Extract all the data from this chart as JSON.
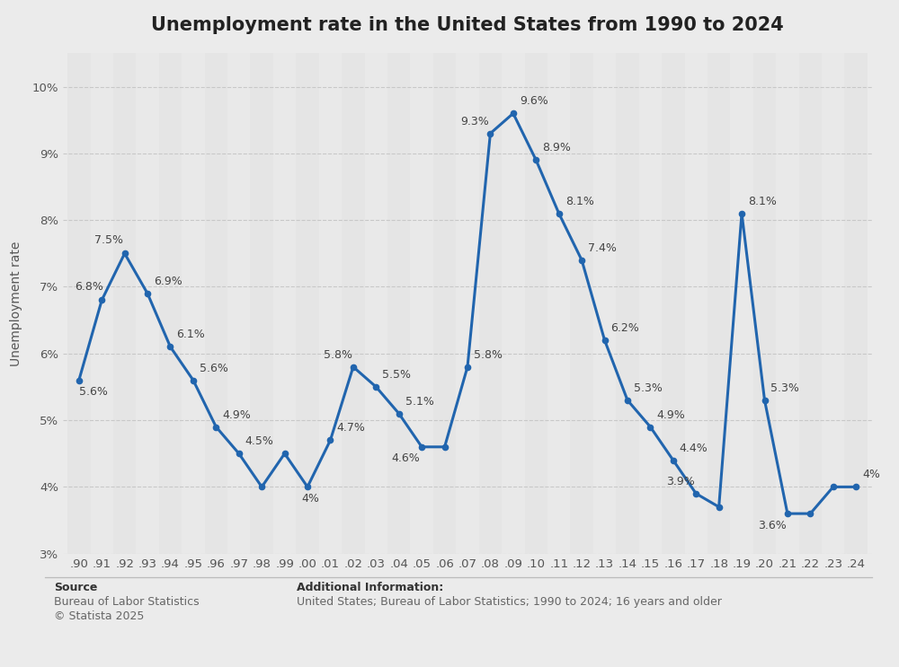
{
  "title": "Unemployment rate in the United States from 1990 to 2024",
  "ylabel": "Unemployment rate",
  "x_labels": [
    ".90",
    ".91",
    ".92",
    ".93",
    ".94",
    ".95",
    ".96",
    ".97",
    ".98",
    ".99",
    ".00",
    ".01",
    ".02",
    ".03",
    ".04",
    ".05",
    ".06",
    ".07",
    ".08",
    ".09",
    ".10",
    ".11",
    ".12",
    ".13",
    ".14",
    ".15",
    ".16",
    ".17",
    ".18",
    ".19",
    ".20",
    ".21",
    ".22",
    ".23",
    ".24"
  ],
  "values": [
    5.6,
    6.8,
    7.5,
    6.9,
    6.1,
    5.6,
    4.9,
    4.5,
    4.0,
    4.5,
    4.0,
    4.7,
    5.8,
    5.5,
    5.1,
    4.6,
    4.6,
    5.8,
    9.3,
    9.6,
    8.9,
    8.1,
    7.4,
    6.2,
    5.3,
    4.9,
    4.4,
    3.9,
    3.7,
    8.1,
    5.3,
    3.6,
    3.6,
    4.0,
    4.0
  ],
  "point_labels": {
    "0": [
      "5.6%",
      "left",
      0,
      -14
    ],
    "1": [
      "6.8%",
      "left",
      -22,
      6
    ],
    "2": [
      "7.5%",
      "left",
      -24,
      6
    ],
    "3": [
      "6.9%",
      "left",
      5,
      5
    ],
    "4": [
      "6.1%",
      "left",
      5,
      5
    ],
    "5": [
      "5.6%",
      "left",
      5,
      5
    ],
    "6": [
      "4.9%",
      "left",
      5,
      5
    ],
    "7": [
      "4.5%",
      "left",
      5,
      5
    ],
    "10": [
      "4%",
      "left",
      -5,
      -14
    ],
    "11": [
      "4.7%",
      "left",
      5,
      5
    ],
    "12": [
      "5.8%",
      "left",
      -24,
      5
    ],
    "13": [
      "5.5%",
      "left",
      5,
      5
    ],
    "14": [
      "5.1%",
      "left",
      5,
      5
    ],
    "15": [
      "4.6%",
      "left",
      -24,
      -14
    ],
    "17": [
      "5.8%",
      "left",
      5,
      5
    ],
    "18": [
      "9.3%",
      "left",
      -24,
      5
    ],
    "19": [
      "9.6%",
      "left",
      5,
      5
    ],
    "20": [
      "8.9%",
      "left",
      5,
      5
    ],
    "21": [
      "8.1%",
      "left",
      5,
      5
    ],
    "22": [
      "7.4%",
      "left",
      5,
      5
    ],
    "23": [
      "6.2%",
      "left",
      5,
      5
    ],
    "24": [
      "5.3%",
      "left",
      5,
      5
    ],
    "25": [
      "4.9%",
      "left",
      5,
      5
    ],
    "26": [
      "4.4%",
      "left",
      5,
      5
    ],
    "27": [
      "3.9%",
      "left",
      -24,
      5
    ],
    "29": [
      "8.1%",
      "left",
      5,
      5
    ],
    "30": [
      "5.3%",
      "left",
      5,
      5
    ],
    "31": [
      "3.6%",
      "left",
      -24,
      -14
    ],
    "34": [
      "4%",
      "left",
      5,
      5
    ]
  },
  "line_color": "#2165AE",
  "bg_color": "#ebebeb",
  "plot_bg_color": "#ebebeb",
  "grid_color": "#c8c8c8",
  "ylim": [
    3.0,
    10.5
  ],
  "yticks": [
    3,
    4,
    5,
    6,
    7,
    8,
    9,
    10
  ],
  "title_fontsize": 15,
  "axis_label_fontsize": 10,
  "tick_fontsize": 9.5,
  "label_fontsize": 9,
  "source_text": "Source",
  "source_line1": "Bureau of Labor Statistics",
  "source_line2": "© Statista 2025",
  "addl_info_title": "Additional Information:",
  "addl_info_text": "United States; Bureau of Labor Statistics; 1990 to 2024; 16 years and older"
}
